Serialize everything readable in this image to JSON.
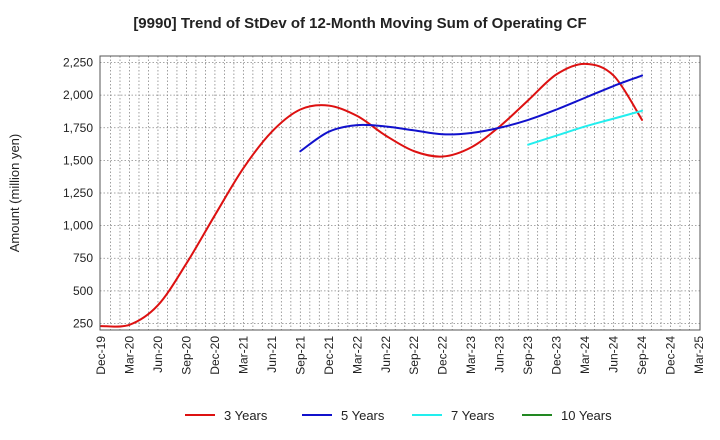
{
  "chart_data": {
    "type": "line",
    "title": "[9990]  Trend of StDev of 12-Month Moving Sum of Operating CF",
    "xlabel": "",
    "ylabel": "Amount (million yen)",
    "ylim": [
      200,
      2300
    ],
    "yticks": [
      250,
      500,
      750,
      1000,
      1250,
      1500,
      1750,
      2000,
      2250
    ],
    "ytick_labels": [
      "250",
      "500",
      "750",
      "1,000",
      "1,250",
      "1,500",
      "1,750",
      "2,000",
      "2,250"
    ],
    "categories": [
      "Dec-19",
      "Mar-20",
      "Jun-20",
      "Sep-20",
      "Dec-20",
      "Mar-21",
      "Jun-21",
      "Sep-21",
      "Dec-21",
      "Mar-22",
      "Jun-22",
      "Sep-22",
      "Dec-22",
      "Mar-23",
      "Jun-23",
      "Sep-23",
      "Dec-23",
      "Mar-24",
      "Jun-24",
      "Sep-24",
      "Dec-24",
      "Mar-25"
    ],
    "grid": true,
    "legend_position": "bottom",
    "series": [
      {
        "name": "3 Years",
        "color": "#dd1111",
        "values": [
          230,
          240,
          390,
          710,
          1080,
          1440,
          1720,
          1890,
          1920,
          1840,
          1690,
          1570,
          1530,
          1600,
          1760,
          1960,
          2160,
          2240,
          2150,
          1810,
          null,
          null
        ]
      },
      {
        "name": "5 Years",
        "color": "#1111cc",
        "values": [
          null,
          null,
          null,
          null,
          null,
          null,
          null,
          1570,
          1720,
          1770,
          1760,
          1730,
          1700,
          1710,
          1750,
          1810,
          1890,
          1980,
          2070,
          2150,
          null,
          null
        ]
      },
      {
        "name": "7 Years",
        "color": "#22eeee",
        "values": [
          null,
          null,
          null,
          null,
          null,
          null,
          null,
          null,
          null,
          null,
          null,
          null,
          null,
          null,
          null,
          1620,
          1690,
          1760,
          1820,
          1880,
          null,
          null
        ]
      },
      {
        "name": "10 Years",
        "color": "#228822",
        "values": [
          null,
          null,
          null,
          null,
          null,
          null,
          null,
          null,
          null,
          null,
          null,
          null,
          null,
          null,
          null,
          null,
          null,
          null,
          null,
          null,
          null,
          null
        ]
      }
    ]
  }
}
